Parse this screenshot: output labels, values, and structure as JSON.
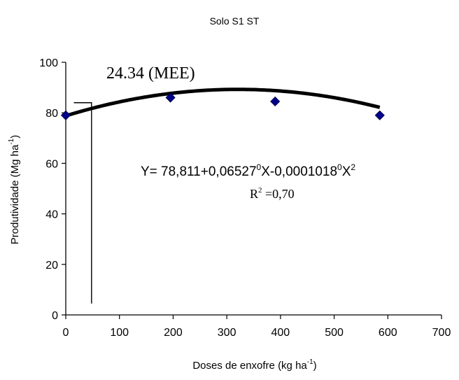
{
  "chart_data": {
    "type": "scatter",
    "title": "Solo S1 ST",
    "xlabel": "Doses de enxofre (kg ha",
    "xlabel_sup": "-1",
    "xlabel_end": ")",
    "ylabel": "Produtividade (Mg ha",
    "ylabel_sup": "-1",
    "ylabel_end": ")",
    "xlim": [
      0,
      700
    ],
    "ylim": [
      0,
      100
    ],
    "xticks": [
      0,
      100,
      200,
      300,
      400,
      500,
      600,
      700
    ],
    "yticks": [
      0,
      20,
      40,
      60,
      80,
      100
    ],
    "grid": false,
    "marker_color": "#00008B",
    "curve_color": "#000000",
    "points": [
      {
        "x": 0,
        "y": 79
      },
      {
        "x": 195,
        "y": 86
      },
      {
        "x": 390,
        "y": 84.5
      },
      {
        "x": 585,
        "y": 79
      }
    ],
    "fit": {
      "a": 78.811,
      "b": 0.06527,
      "c": -0.0001018,
      "x_range": [
        0,
        585
      ]
    },
    "mee_label": "24.34 (MEE)",
    "mee_x": 48,
    "mee_y": 84,
    "equation": {
      "p1": "Y= 78,811+0,06527",
      "sup1": "0",
      "p2": "X-0,0001018",
      "sup2": "0",
      "p3": "X",
      "sup3": "2"
    },
    "r2": {
      "p1": "R",
      "sup": "2",
      "p2": " =0,70"
    }
  }
}
